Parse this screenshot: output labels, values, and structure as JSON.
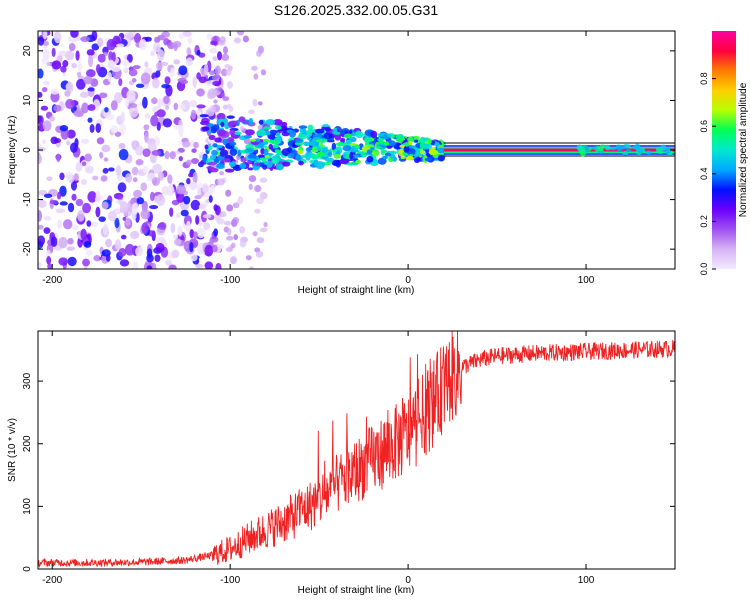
{
  "title": "S126.2025.332.00.05.G31",
  "colors": {
    "snr_line": "#ee2222",
    "axis": "#000000",
    "spectrum_ridge": "#e8223a"
  },
  "chart_data": [
    {
      "type": "heatmap",
      "name": "spectrogram",
      "xlabel": "Height of straight line (km)",
      "ylabel": "Frequency (Hz)",
      "xlim": [
        -208,
        150
      ],
      "ylim": [
        -24,
        24
      ],
      "xticks": [
        -200,
        -100,
        0,
        100
      ],
      "yticks": [
        -20,
        -10,
        0,
        10,
        20
      ],
      "colorbar": {
        "label": "Normalized spectral amplitude",
        "range": [
          0,
          1
        ],
        "ticks": [
          "0.0",
          "0.2",
          "0.4",
          "0.6",
          "0.8"
        ],
        "tick_values": [
          0,
          0.2,
          0.4,
          0.6,
          0.8
        ],
        "colormap": [
          "#f2e9ff",
          "#d7b4f5",
          "#a04ff0",
          "#6a00ff",
          "#0011ff",
          "#00aaff",
          "#00e8d0",
          "#00ff55",
          "#b5ff00",
          "#ffd000",
          "#ff7a00",
          "#ff0040",
          "#ff00a0"
        ]
      },
      "ridge": {
        "frequency_hz": 0,
        "x_start_km": 20,
        "x_end_km": 150,
        "amplitude": 0.95
      },
      "noise_region": {
        "x_from_km": -208,
        "x_to_km": -105,
        "amplitude": [
          0.0,
          0.35
        ]
      },
      "transition_region": {
        "x_from_km": -115,
        "x_to_km": 20,
        "frequency_spread_hz": 6
      }
    },
    {
      "type": "line",
      "name": "snr",
      "xlabel": "Height of straight line (km)",
      "ylabel": "SNR (10 * v/v)",
      "xlim": [
        -208,
        150
      ],
      "ylim": [
        0,
        380
      ],
      "xticks": [
        -200,
        -100,
        0,
        100
      ],
      "yticks": [
        0,
        100,
        200,
        300
      ],
      "series": [
        {
          "name": "SNR",
          "x": [
            -208,
            -180,
            -150,
            -125,
            -110,
            -100,
            -90,
            -80,
            -70,
            -60,
            -50,
            -40,
            -30,
            -20,
            -10,
            0,
            5,
            10,
            15,
            20,
            25,
            30,
            40,
            50,
            60,
            70,
            80,
            90,
            100,
            110,
            120,
            130,
            140,
            150
          ],
          "values": [
            10,
            10,
            11,
            14,
            22,
            32,
            48,
            62,
            75,
            92,
            110,
            135,
            155,
            175,
            195,
            215,
            232,
            250,
            268,
            292,
            310,
            322,
            334,
            340,
            342,
            344,
            345,
            346,
            347,
            348,
            349,
            350,
            351,
            352
          ]
        }
      ]
    }
  ]
}
